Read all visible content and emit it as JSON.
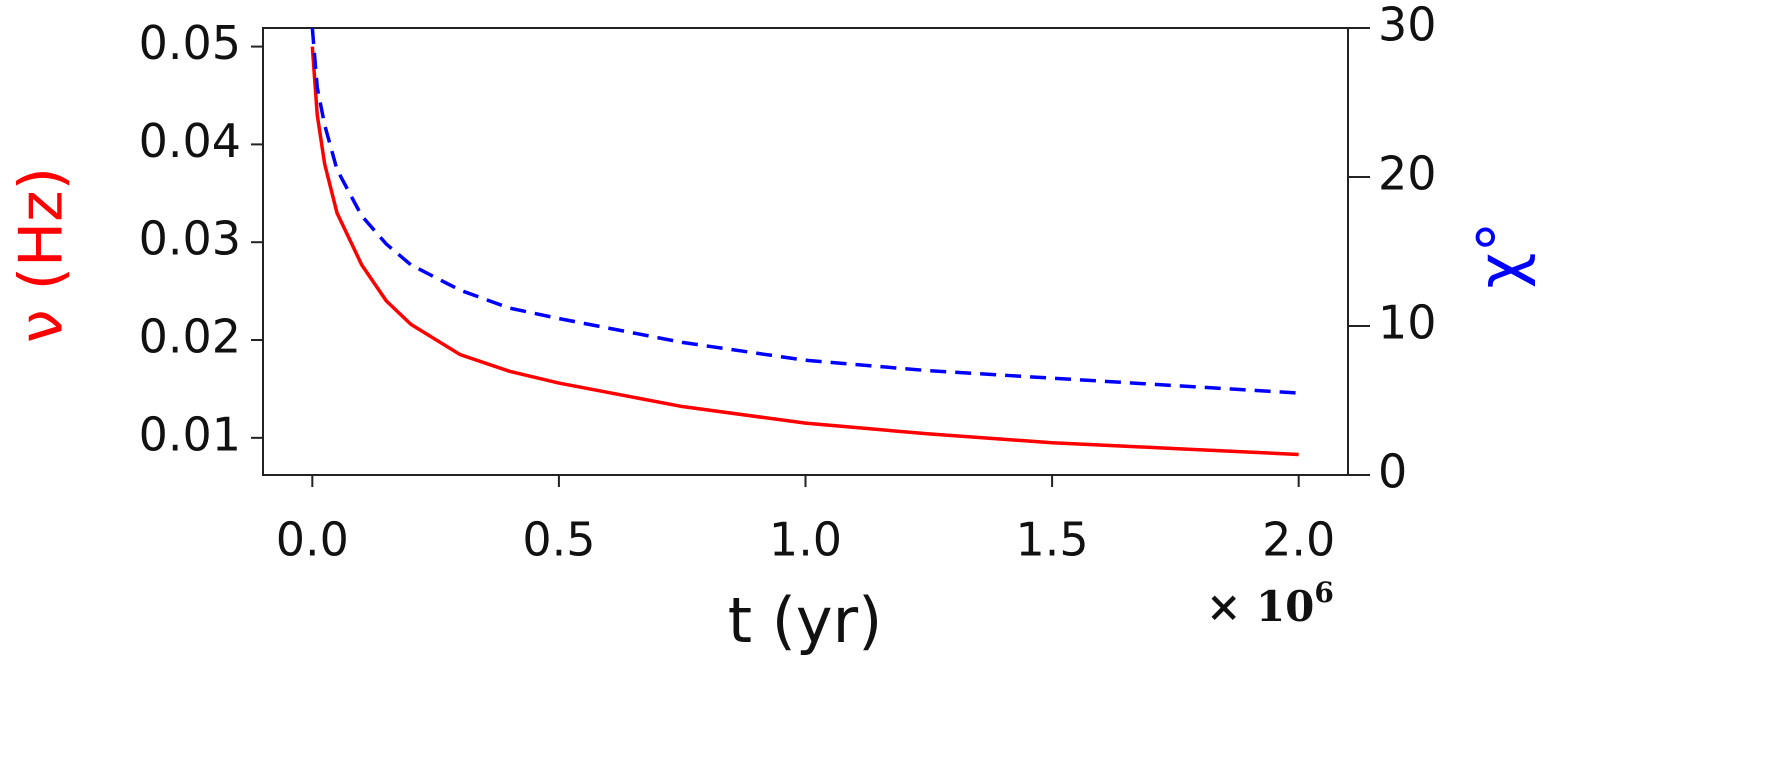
{
  "chart_data": {
    "type": "line",
    "x_label": "t (yr)",
    "y_label": "ν (Hz)",
    "y2_label": "χ°",
    "x_multiplier": {
      "base": "× 10",
      "exponent": "6"
    },
    "x": [
      0,
      0.01,
      0.025,
      0.05,
      0.1,
      0.15,
      0.2,
      0.3,
      0.4,
      0.5,
      0.75,
      1.0,
      1.25,
      1.5,
      1.75,
      2.0
    ],
    "series": [
      {
        "name": "ν",
        "color": "#ff0000",
        "linestyle": "solid",
        "values": [
          0.05,
          0.043,
          0.038,
          0.033,
          0.0277,
          0.024,
          0.0216,
          0.0185,
          0.0168,
          0.0156,
          0.0132,
          0.0115,
          0.0104,
          0.0095,
          0.0089,
          0.0083
        ]
      },
      {
        "name": "χ",
        "color": "#0000ff",
        "linestyle": "dashed",
        "axis": "y2",
        "values": [
          30,
          26,
          23.5,
          20.5,
          17.4,
          15.5,
          14.1,
          12.4,
          11.2,
          10.5,
          8.9,
          7.7,
          7.0,
          6.5,
          6.0,
          5.5
        ]
      }
    ],
    "xlim": [
      -0.1,
      2.1
    ],
    "xticks": [
      {
        "value": 0,
        "label": "0.0"
      },
      0.5,
      {
        "value": 1,
        "label": "1.0"
      },
      1.5,
      {
        "value": 2,
        "label": "2.0"
      }
    ],
    "ylim": [
      0.0062,
      0.0519
    ],
    "yticks": [
      0.01,
      0.02,
      0.03,
      0.04,
      0.05
    ],
    "y2lim": [
      0,
      30
    ],
    "y2ticks": [
      0,
      10,
      20,
      30
    ],
    "y_label_color": "#ff0000",
    "y2_label_color": "#0000ff"
  }
}
